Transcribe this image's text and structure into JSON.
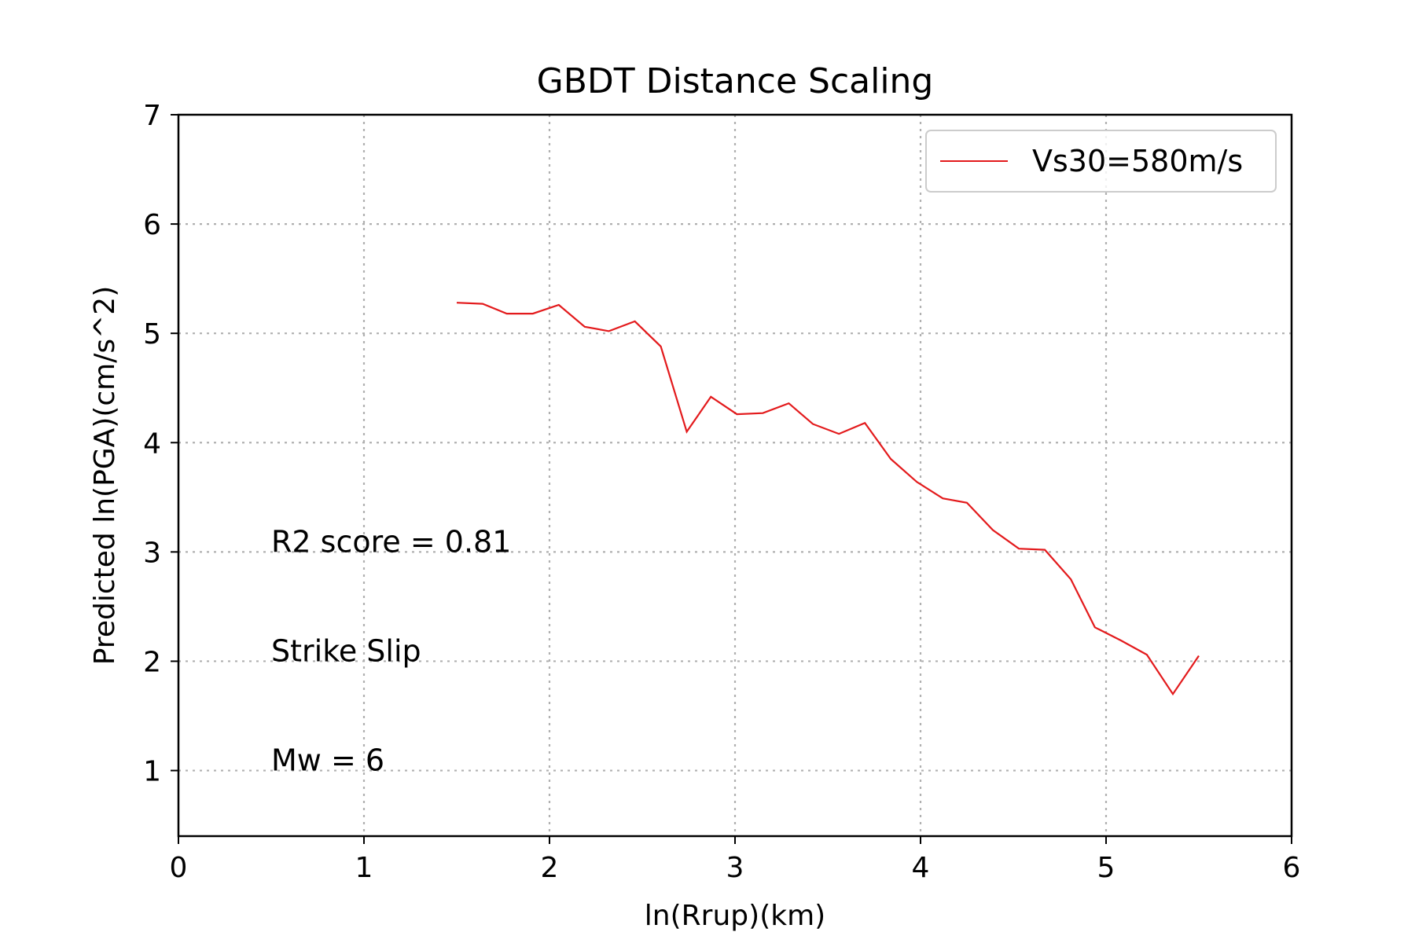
{
  "chart_data": {
    "type": "line",
    "title": "GBDT Distance Scaling",
    "xlabel": "ln(Rrup)(km)",
    "ylabel": "Predicted ln(PGA)(cm/s^2)",
    "xlim": [
      0,
      6
    ],
    "ylim": [
      0.4,
      7
    ],
    "xticks": [
      0,
      1,
      2,
      3,
      4,
      5,
      6
    ],
    "yticks": [
      1,
      2,
      3,
      4,
      5,
      6,
      7
    ],
    "grid": true,
    "grid_style": "dotted",
    "legend_position": "upper right",
    "series": [
      {
        "name": "Vs30=580m/s",
        "color": "#e31a1c",
        "x": [
          1.5,
          1.64,
          1.77,
          1.91,
          2.05,
          2.19,
          2.32,
          2.46,
          2.6,
          2.74,
          2.87,
          3.01,
          3.15,
          3.29,
          3.42,
          3.56,
          3.7,
          3.84,
          3.98,
          4.12,
          4.25,
          4.39,
          4.53,
          4.67,
          4.81,
          4.94,
          5.08,
          5.22,
          5.36,
          5.5
        ],
        "y": [
          5.28,
          5.27,
          5.18,
          5.18,
          5.26,
          5.06,
          5.02,
          5.11,
          4.88,
          4.1,
          4.42,
          4.26,
          4.27,
          4.36,
          4.17,
          4.08,
          4.18,
          3.85,
          3.64,
          3.49,
          3.45,
          3.2,
          3.03,
          3.02,
          2.75,
          2.31,
          2.19,
          2.06,
          1.7,
          2.05
        ]
      }
    ],
    "annotations": [
      {
        "text": "R2 score = 0.81",
        "x": 0.5,
        "y": 3.0
      },
      {
        "text": "Strike Slip",
        "x": 0.5,
        "y": 2.0
      },
      {
        "text": "Mw = 6",
        "x": 0.5,
        "y": 1.0
      }
    ]
  }
}
